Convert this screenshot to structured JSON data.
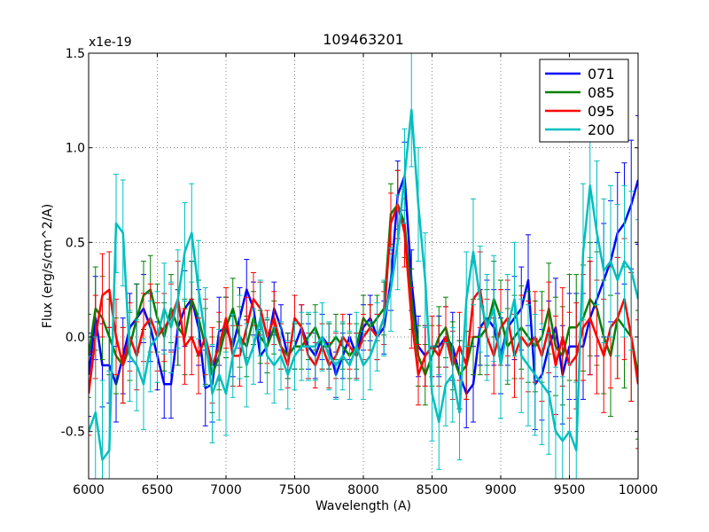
{
  "chart_data": {
    "type": "line",
    "title": "109463201",
    "xlabel": "Wavelength (A)",
    "ylabel": "Flux (erg/s/cm^2/A)",
    "multiplier_label": "x1e-19",
    "xlim": [
      6000,
      10000
    ],
    "ylim": [
      -0.75,
      1.5
    ],
    "xticks": [
      6000,
      6500,
      7000,
      7500,
      8000,
      8500,
      9000,
      9500,
      10000
    ],
    "xtick_labels": [
      "6000",
      "6500",
      "7000",
      "7500",
      "8000",
      "8500",
      "9000",
      "9500",
      "10000"
    ],
    "yticks": [
      -0.5,
      0.0,
      0.5,
      1.0,
      1.5
    ],
    "ytick_labels": [
      "-0.5",
      "0.0",
      "0.5",
      "1.0",
      "1.5"
    ],
    "grid": true,
    "legend_position": "top-right",
    "x": [
      6000,
      6050,
      6100,
      6150,
      6200,
      6250,
      6300,
      6350,
      6400,
      6450,
      6500,
      6550,
      6600,
      6650,
      6700,
      6750,
      6800,
      6850,
      6900,
      6950,
      7000,
      7050,
      7100,
      7150,
      7200,
      7250,
      7300,
      7350,
      7400,
      7450,
      7500,
      7550,
      7600,
      7650,
      7700,
      7750,
      7800,
      7850,
      7900,
      7950,
      8000,
      8050,
      8100,
      8150,
      8200,
      8250,
      8300,
      8350,
      8400,
      8450,
      8500,
      8550,
      8600,
      8650,
      8700,
      8750,
      8800,
      8850,
      8900,
      8950,
      9000,
      9050,
      9100,
      9150,
      9200,
      9250,
      9300,
      9350,
      9400,
      9450,
      9500,
      9550,
      9600,
      9650,
      9700,
      9750,
      9800,
      9850,
      9900,
      9950,
      10000
    ],
    "series": [
      {
        "name": "071",
        "color": "#0000ff",
        "values": [
          -0.2,
          0.1,
          -0.15,
          -0.15,
          -0.25,
          -0.1,
          0.05,
          0.1,
          0.15,
          0.05,
          -0.1,
          -0.25,
          -0.25,
          0.05,
          0.15,
          0.2,
          0.05,
          -0.27,
          -0.25,
          0.03,
          0.05,
          -0.05,
          0.1,
          0.25,
          0.15,
          -0.1,
          -0.05,
          0.15,
          0.05,
          -0.1,
          -0.05,
          0.05,
          -0.05,
          -0.1,
          0.0,
          -0.05,
          -0.2,
          -0.1,
          0.0,
          -0.1,
          0.05,
          0.1,
          0.0,
          0.05,
          0.3,
          0.75,
          0.85,
          0.3,
          -0.05,
          -0.1,
          -0.05,
          -0.05,
          0.0,
          -0.05,
          -0.2,
          -0.3,
          -0.25,
          0.05,
          0.1,
          0.05,
          -0.1,
          0.05,
          0.1,
          0.15,
          0.3,
          -0.25,
          -0.2,
          -0.05,
          0.05,
          -0.2,
          -0.05,
          -0.05,
          -0.05,
          0.1,
          0.2,
          0.3,
          0.4,
          0.55,
          0.6,
          0.7,
          0.83
        ],
        "errors": [
          0.22,
          0.22,
          0.22,
          0.2,
          0.2,
          0.2,
          0.18,
          0.18,
          0.18,
          0.18,
          0.18,
          0.18,
          0.18,
          0.2,
          0.2,
          0.2,
          0.2,
          0.2,
          0.2,
          0.18,
          0.16,
          0.16,
          0.16,
          0.16,
          0.14,
          0.14,
          0.14,
          0.14,
          0.12,
          0.12,
          0.12,
          0.12,
          0.12,
          0.12,
          0.12,
          0.12,
          0.12,
          0.12,
          0.12,
          0.12,
          0.12,
          0.12,
          0.12,
          0.14,
          0.16,
          0.18,
          0.18,
          0.16,
          0.16,
          0.16,
          0.16,
          0.16,
          0.16,
          0.18,
          0.18,
          0.18,
          0.2,
          0.2,
          0.2,
          0.2,
          0.2,
          0.2,
          0.22,
          0.22,
          0.24,
          0.24,
          0.24,
          0.24,
          0.26,
          0.26,
          0.28,
          0.28,
          0.28,
          0.3,
          0.3,
          0.3,
          0.32,
          0.32,
          0.32,
          0.34,
          0.34
        ]
      },
      {
        "name": "085",
        "color": "#008000",
        "values": [
          -0.1,
          0.15,
          0.1,
          0.0,
          -0.1,
          -0.15,
          -0.05,
          0.1,
          0.22,
          0.25,
          0.1,
          0.0,
          0.15,
          0.05,
          0.0,
          0.2,
          0.1,
          -0.05,
          -0.2,
          -0.1,
          0.05,
          0.15,
          0.0,
          -0.05,
          0.1,
          0.0,
          -0.05,
          0.05,
          -0.05,
          -0.1,
          -0.05,
          -0.05,
          0.0,
          0.05,
          -0.05,
          -0.05,
          0.0,
          -0.05,
          -0.1,
          -0.05,
          0.1,
          0.05,
          0.1,
          0.15,
          0.65,
          0.7,
          0.6,
          0.2,
          -0.1,
          -0.2,
          -0.1,
          0.0,
          0.05,
          -0.1,
          -0.2,
          -0.15,
          0.0,
          0.0,
          0.05,
          0.2,
          0.1,
          -0.05,
          0.0,
          0.05,
          0.0,
          -0.05,
          0.0,
          0.15,
          -0.05,
          -0.1,
          0.05,
          0.05,
          0.1,
          0.2,
          0.15,
          0.0,
          -0.1,
          0.1,
          0.05,
          0.0,
          -0.2
        ],
        "errors": [
          0.22,
          0.22,
          0.22,
          0.2,
          0.2,
          0.2,
          0.18,
          0.18,
          0.18,
          0.18,
          0.18,
          0.18,
          0.18,
          0.2,
          0.2,
          0.2,
          0.2,
          0.2,
          0.2,
          0.18,
          0.16,
          0.16,
          0.16,
          0.16,
          0.14,
          0.14,
          0.14,
          0.14,
          0.12,
          0.12,
          0.12,
          0.12,
          0.12,
          0.12,
          0.12,
          0.12,
          0.12,
          0.12,
          0.12,
          0.12,
          0.12,
          0.12,
          0.12,
          0.14,
          0.16,
          0.18,
          0.18,
          0.16,
          0.16,
          0.16,
          0.16,
          0.16,
          0.16,
          0.18,
          0.18,
          0.18,
          0.2,
          0.2,
          0.2,
          0.2,
          0.2,
          0.2,
          0.22,
          0.22,
          0.24,
          0.24,
          0.24,
          0.24,
          0.26,
          0.26,
          0.28,
          0.28,
          0.28,
          0.3,
          0.3,
          0.3,
          0.32,
          0.32,
          0.32,
          0.34,
          0.34
        ]
      },
      {
        "name": "095",
        "color": "#ff0000",
        "values": [
          -0.3,
          0.0,
          0.22,
          0.25,
          0.0,
          -0.15,
          0.0,
          -0.1,
          0.05,
          0.1,
          0.0,
          0.05,
          0.1,
          0.2,
          -0.05,
          0.0,
          -0.1,
          0.0,
          -0.15,
          -0.05,
          0.1,
          -0.1,
          -0.1,
          0.05,
          0.2,
          0.15,
          0.0,
          0.1,
          -0.05,
          -0.15,
          0.1,
          0.05,
          -0.1,
          -0.15,
          -0.05,
          -0.15,
          -0.1,
          0.0,
          -0.05,
          -0.1,
          0.0,
          0.05,
          0.0,
          0.1,
          0.6,
          0.7,
          0.55,
          0.1,
          -0.2,
          -0.1,
          -0.05,
          -0.1,
          0.0,
          -0.15,
          -0.05,
          -0.15,
          0.2,
          0.25,
          0.0,
          -0.1,
          0.05,
          0.1,
          -0.1,
          0.0,
          -0.05,
          0.0,
          -0.1,
          0.05,
          -0.15,
          0.0,
          -0.15,
          -0.1,
          0.05,
          0.1,
          0.0,
          -0.1,
          0.05,
          0.1,
          0.2,
          0.0,
          -0.25
        ],
        "errors": [
          0.22,
          0.22,
          0.22,
          0.2,
          0.2,
          0.2,
          0.18,
          0.18,
          0.18,
          0.18,
          0.18,
          0.18,
          0.18,
          0.2,
          0.2,
          0.2,
          0.2,
          0.2,
          0.2,
          0.18,
          0.16,
          0.16,
          0.16,
          0.16,
          0.14,
          0.14,
          0.14,
          0.14,
          0.12,
          0.12,
          0.12,
          0.12,
          0.12,
          0.12,
          0.12,
          0.12,
          0.12,
          0.12,
          0.12,
          0.12,
          0.12,
          0.12,
          0.12,
          0.14,
          0.16,
          0.18,
          0.18,
          0.16,
          0.16,
          0.16,
          0.16,
          0.16,
          0.16,
          0.18,
          0.18,
          0.18,
          0.2,
          0.2,
          0.2,
          0.2,
          0.2,
          0.2,
          0.22,
          0.22,
          0.24,
          0.24,
          0.24,
          0.24,
          0.26,
          0.26,
          0.28,
          0.28,
          0.28,
          0.3,
          0.3,
          0.3,
          0.32,
          0.32,
          0.32,
          0.34,
          0.34
        ]
      },
      {
        "name": "200",
        "color": "#00bfbf",
        "values": [
          -0.5,
          -0.4,
          -0.65,
          -0.6,
          0.6,
          0.55,
          -0.1,
          -0.15,
          -0.25,
          -0.05,
          0.0,
          0.15,
          0.05,
          0.2,
          0.45,
          0.55,
          0.25,
          0.0,
          -0.3,
          -0.2,
          -0.3,
          -0.1,
          0.0,
          -0.15,
          -0.05,
          0.1,
          -0.1,
          -0.15,
          -0.1,
          -0.2,
          -0.1,
          -0.05,
          -0.05,
          -0.05,
          0.0,
          -0.1,
          -0.15,
          -0.1,
          -0.15,
          -0.05,
          -0.15,
          -0.1,
          0.0,
          0.1,
          0.25,
          0.5,
          0.85,
          1.2,
          0.7,
          0.3,
          -0.3,
          -0.45,
          -0.25,
          -0.2,
          -0.4,
          0.2,
          0.45,
          0.2,
          0.05,
          0.15,
          -0.15,
          0.05,
          0.2,
          -0.1,
          -0.15,
          -0.2,
          -0.25,
          -0.3,
          -0.5,
          -0.55,
          -0.5,
          -0.6,
          0.45,
          0.8,
          0.55,
          0.35,
          0.4,
          0.3,
          0.4,
          0.35,
          0.2
        ],
        "errors": [
          0.4,
          0.4,
          0.42,
          0.42,
          0.26,
          0.28,
          0.24,
          0.24,
          0.24,
          0.24,
          0.24,
          0.24,
          0.24,
          0.26,
          0.26,
          0.26,
          0.26,
          0.26,
          0.26,
          0.24,
          0.22,
          0.22,
          0.22,
          0.22,
          0.2,
          0.2,
          0.2,
          0.2,
          0.18,
          0.18,
          0.18,
          0.18,
          0.18,
          0.18,
          0.18,
          0.18,
          0.18,
          0.18,
          0.18,
          0.18,
          0.18,
          0.18,
          0.18,
          0.2,
          0.22,
          0.25,
          0.25,
          0.3,
          0.3,
          0.25,
          0.25,
          0.25,
          0.22,
          0.25,
          0.25,
          0.25,
          0.28,
          0.28,
          0.28,
          0.28,
          0.28,
          0.28,
          0.3,
          0.3,
          0.32,
          0.32,
          0.32,
          0.32,
          0.34,
          0.34,
          0.36,
          0.36,
          0.36,
          0.38,
          0.38,
          0.38,
          0.4,
          0.4,
          0.4,
          0.42,
          0.42
        ]
      }
    ]
  }
}
